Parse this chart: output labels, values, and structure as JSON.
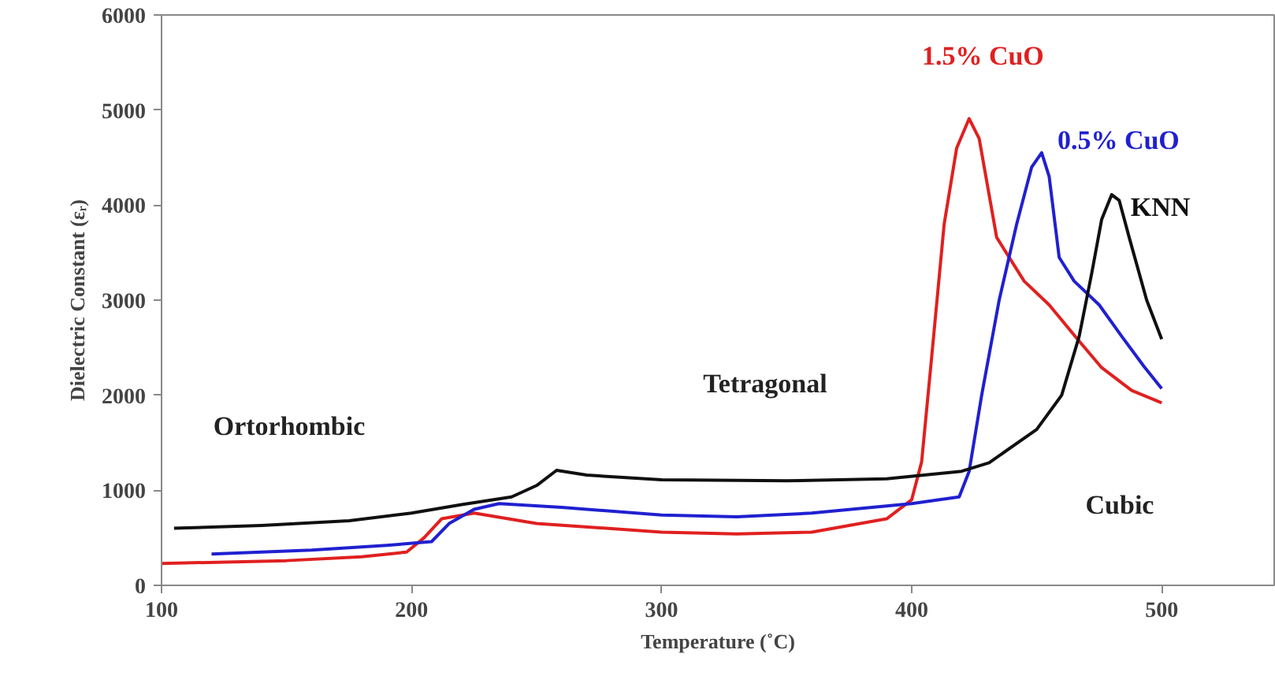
{
  "chart_data": {
    "type": "line",
    "xlabel": "Temperature (˚C)",
    "ylabel": "Dielectric Constant (εᵣ)",
    "xlim": [
      100,
      545
    ],
    "xticks": [
      100,
      200,
      300,
      400,
      500
    ],
    "ylim": [
      0,
      6000
    ],
    "yticks": [
      0,
      1000,
      2000,
      3000,
      4000,
      5000,
      6000
    ],
    "grid": false,
    "legend": false,
    "marker": "none",
    "line_style": "solid",
    "annotations": [
      "Ortorhombic",
      "Tetragonal",
      "Cubic"
    ],
    "series": [
      {
        "name": "1.5% CuO",
        "color": "#e02020",
        "x": [
          100,
          150,
          180,
          198,
          205,
          212,
          225,
          250,
          300,
          330,
          360,
          390,
          400,
          404,
          408,
          413,
          418,
          423,
          427,
          434,
          445,
          455,
          466,
          476,
          488,
          500
        ],
        "values": [
          230,
          260,
          300,
          350,
          500,
          700,
          760,
          650,
          560,
          540,
          560,
          700,
          900,
          1300,
          2400,
          3800,
          4600,
          4910,
          4700,
          3660,
          3200,
          2950,
          2600,
          2290,
          2050,
          1920
        ]
      },
      {
        "name": "0.5% CuO",
        "color": "#2020d0",
        "x": [
          120,
          160,
          190,
          208,
          215,
          225,
          235,
          260,
          300,
          330,
          360,
          400,
          419,
          423,
          428,
          435,
          442,
          448,
          452,
          455,
          459,
          465,
          475,
          484,
          493,
          500
        ],
        "values": [
          330,
          370,
          420,
          460,
          650,
          800,
          860,
          820,
          740,
          720,
          760,
          860,
          930,
          1200,
          2000,
          3000,
          3800,
          4400,
          4550,
          4300,
          3450,
          3200,
          2950,
          2620,
          2300,
          2070
        ]
      },
      {
        "name": "KNN",
        "color": "#101010",
        "x": [
          105,
          140,
          175,
          200,
          220,
          240,
          250,
          258,
          270,
          300,
          350,
          390,
          420,
          431,
          450,
          460,
          467,
          472,
          476,
          480,
          483,
          487,
          494,
          500
        ],
        "values": [
          600,
          630,
          680,
          760,
          850,
          930,
          1050,
          1210,
          1160,
          1110,
          1100,
          1120,
          1200,
          1290,
          1640,
          2000,
          2620,
          3280,
          3850,
          4110,
          4050,
          3660,
          3000,
          2590
        ]
      }
    ]
  }
}
